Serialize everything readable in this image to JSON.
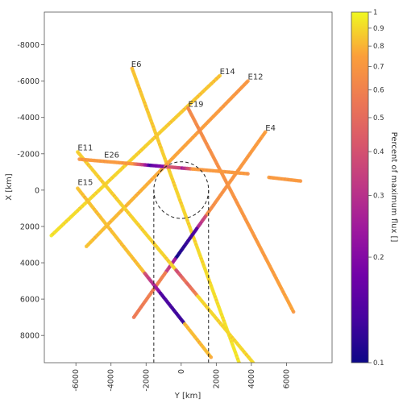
{
  "chart_data": {
    "type": "scatter",
    "xlabel": "Y [km]",
    "ylabel": "X [km]",
    "xlim": [
      -7800,
      8600
    ],
    "ylim": [
      -9800,
      9500
    ],
    "y_inverted": true,
    "x_ticks": [
      -6000,
      -4000,
      -2000,
      0,
      2000,
      4000,
      6000
    ],
    "x_tick_labels": [
      "-6000",
      "-4000",
      "-2000",
      "0",
      "2000",
      "4000",
      "6000"
    ],
    "y_ticks": [
      -8000,
      -6000,
      -4000,
      -2000,
      0,
      2000,
      4000,
      6000,
      8000
    ],
    "y_tick_labels": [
      "-8000",
      "-6000",
      "-4000",
      "-2000",
      "0",
      "2000",
      "4000",
      "6000",
      "8000"
    ],
    "colorbar": {
      "label": "Percent of maximum flux []",
      "colormap": "plasma",
      "scale": "log",
      "range": [
        0.1,
        1
      ],
      "ticks": [
        0.1,
        0.2,
        0.3,
        0.4,
        0.5,
        0.6,
        0.7,
        0.8,
        0.9,
        1
      ],
      "tick_labels": [
        "0.1",
        "0.2",
        "0.3",
        "0.4",
        "0.5",
        "0.6",
        "0.7",
        "0.8",
        "0.9",
        "1"
      ]
    },
    "moon": {
      "radius": 1560,
      "shadow_half_width": 1560,
      "style": "dashed"
    },
    "series": [
      {
        "name": "E6",
        "label_at": [
          -2850,
          -6700
        ],
        "start": [
          -2800,
          -6700
        ],
        "end": [
          3300,
          9500
        ],
        "from": 0.82,
        "to": 0.92
      },
      {
        "name": "E14",
        "label_at": [
          2200,
          -6300
        ],
        "start": [
          2200,
          -6300
        ],
        "end": [
          -7400,
          2500
        ],
        "from": 0.82,
        "to": 0.9
      },
      {
        "name": "E12",
        "label_at": [
          3800,
          -6000
        ],
        "start": [
          3800,
          -6000
        ],
        "end": [
          -5400,
          3100
        ],
        "from": 0.68,
        "to": 0.82
      },
      {
        "name": "E19",
        "label_at": [
          400,
          -4500
        ],
        "start": [
          400,
          -4500
        ],
        "end": [
          6400,
          6700
        ],
        "from": 0.62,
        "to": 0.74
      },
      {
        "name": "E4",
        "label_at": [
          4800,
          -3200
        ],
        "start": [
          4800,
          -3200
        ],
        "end": [
          -2700,
          7000
        ],
        "from": 0.72,
        "to": 0.55,
        "dip": [
          [
            0.45,
            0.52,
            0.4,
            0.25
          ],
          [
            0.52,
            0.68,
            0.14,
            0.1
          ],
          [
            0.68,
            0.76,
            0.22,
            0.35
          ]
        ]
      },
      {
        "name": "E11",
        "label_at": [
          -5900,
          -2100
        ],
        "start": [
          -5900,
          -2100
        ],
        "end": [
          4100,
          9500
        ],
        "from": 0.85,
        "to": 0.88,
        "dip": [
          [
            0.56,
            0.62,
            0.35,
            0.55
          ],
          [
            0.62,
            0.68,
            0.45,
            0.6
          ]
        ]
      },
      {
        "name": "E26",
        "label_at": [
          -4400,
          -1700
        ],
        "start": [
          -5800,
          -1700
        ],
        "end": [
          3800,
          -900
        ],
        "from": 0.7,
        "to": 0.7,
        "dip": [
          [
            0.33,
            0.42,
            0.55,
            0.12
          ],
          [
            0.42,
            0.5,
            0.15,
            0.2
          ],
          [
            0.5,
            0.6,
            0.45,
            0.35
          ],
          [
            0.6,
            0.66,
            0.2,
            0.45
          ]
        ]
      },
      {
        "name": "E15",
        "label_at": [
          -5900,
          -200
        ],
        "start": [
          -5900,
          -100
        ],
        "end": [
          1700,
          9200
        ],
        "from": 0.82,
        "to": 0.8,
        "dip": [
          [
            0.5,
            0.62,
            0.4,
            0.18
          ],
          [
            0.62,
            0.8,
            0.14,
            0.12
          ]
        ]
      },
      {
        "name": "",
        "label_at": null,
        "start": [
          5000,
          -700
        ],
        "end": [
          6800,
          -500
        ],
        "from": 0.7,
        "to": 0.7
      }
    ]
  }
}
